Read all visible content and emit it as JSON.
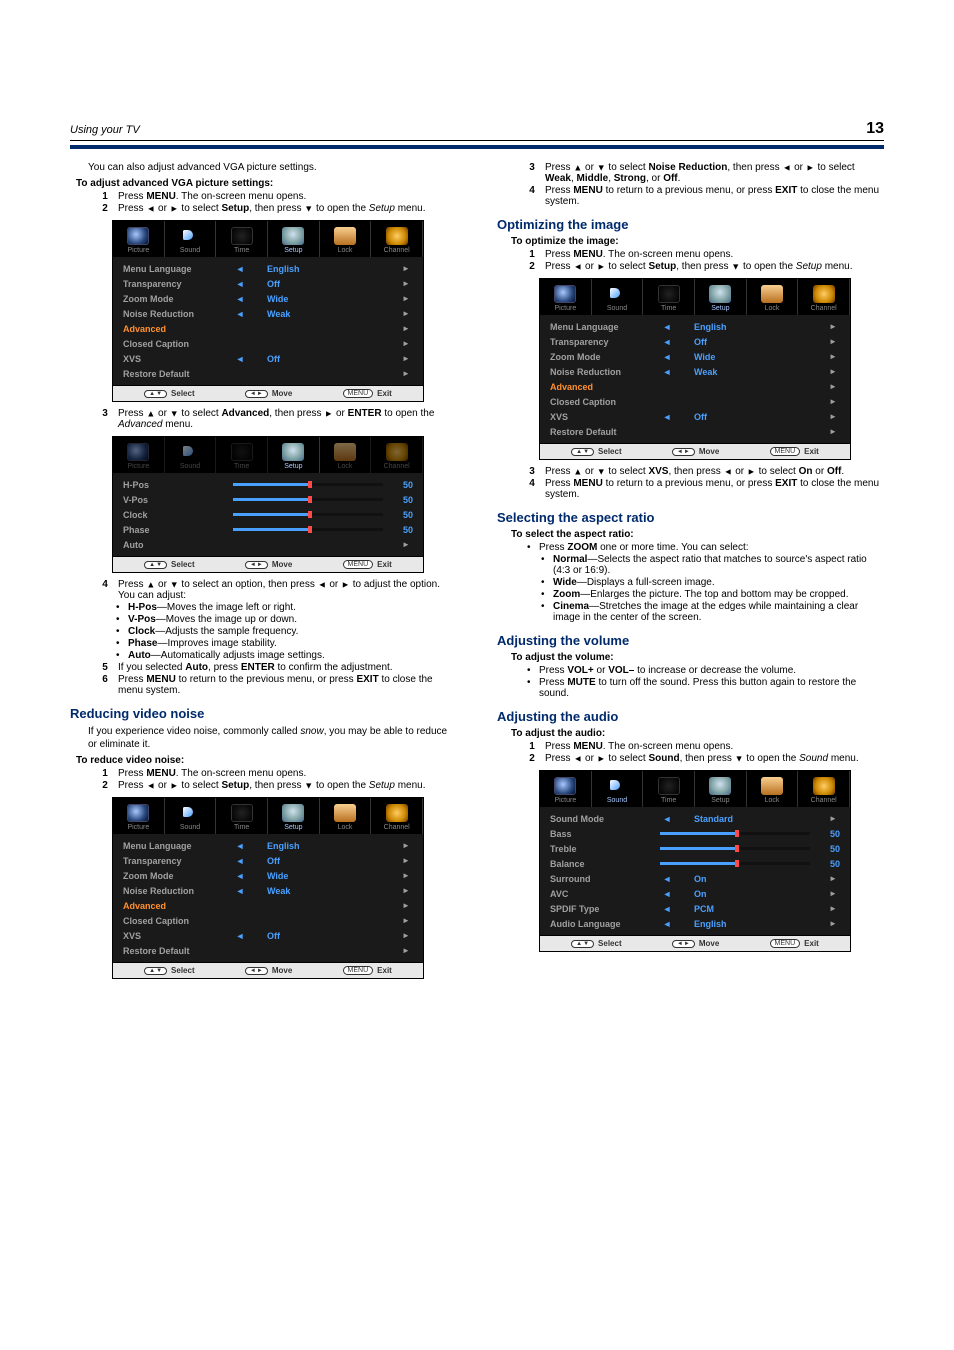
{
  "header": {
    "title": "Using your TV",
    "page_number": "13"
  },
  "accent_color": "#002a6c",
  "osd_common": {
    "tabs": [
      "Picture",
      "Sound",
      "Time",
      "Setup",
      "Lock",
      "Channel"
    ],
    "footer": {
      "select": "Select",
      "move": "Move",
      "exit": "Exit",
      "menu_btn": "MENU"
    }
  },
  "setup_menu": {
    "rows": [
      {
        "label": "Menu Language",
        "val": "English",
        "arrows": true,
        "chev": true
      },
      {
        "label": "Transparency",
        "val": "Off",
        "arrows": true,
        "chev": true
      },
      {
        "label": "Zoom Mode",
        "val": "Wide",
        "arrows": true,
        "chev": true
      },
      {
        "label": "Noise Reduction",
        "val": "Weak",
        "arrows": true,
        "chev": true
      },
      {
        "label": "Advanced",
        "val": "",
        "highlight": true,
        "chev": true
      },
      {
        "label": "Closed Caption",
        "val": "",
        "chev": true
      },
      {
        "label": "XVS",
        "val": "Off",
        "arrows": true,
        "chev": true
      },
      {
        "label": "Restore Default",
        "val": "",
        "chev": true
      }
    ]
  },
  "advanced_menu": {
    "rows": [
      {
        "label": "H-Pos",
        "slider": 50
      },
      {
        "label": "V-Pos",
        "slider": 50
      },
      {
        "label": "Clock",
        "slider": 50
      },
      {
        "label": "Phase",
        "slider": 50
      },
      {
        "label": "Auto",
        "val": "",
        "chev": true
      }
    ]
  },
  "sound_menu": {
    "rows": [
      {
        "label": "Sound Mode",
        "val": "Standard",
        "arrows": true,
        "chev": true
      },
      {
        "label": "Bass",
        "slider": 50
      },
      {
        "label": "Treble",
        "slider": 50
      },
      {
        "label": "Balance",
        "slider": 50
      },
      {
        "label": "Surround",
        "val": "On",
        "arrows": true,
        "chev": true
      },
      {
        "label": "AVC",
        "val": "On",
        "arrows": true,
        "chev": true
      },
      {
        "label": "SPDIF Type",
        "val": "PCM",
        "arrows": true,
        "chev": true
      },
      {
        "label": "Audio Language",
        "val": "English",
        "arrows": true,
        "chev": true
      }
    ]
  },
  "left": {
    "intro": "You can also adjust advanced VGA picture settings.",
    "h_adjust_vga": "To adjust advanced VGA picture settings:",
    "vga_1a": "Press ",
    "vga_1b": "MENU",
    "vga_1c": ". The on-screen menu opens.",
    "vga_2a": "Press ",
    "vga_2b": " or ",
    "vga_2c": " to select ",
    "vga_2d": "Setup",
    "vga_2e": ", then press ",
    "vga_2f": " to open the ",
    "vga_2g": "Setup",
    "vga_2h": " menu.",
    "vga_3a": "Press ",
    "vga_3b": " or ",
    "vga_3c": " to select ",
    "vga_3d": "Advanced",
    "vga_3e": ", then press ",
    "vga_3f": " or ",
    "vga_3g": "ENTER",
    "vga_3h": " to open the ",
    "vga_3i": "Advanced",
    "vga_3j": " menu.",
    "vga_4a": "Press ",
    "vga_4b": " or ",
    "vga_4c": " to select an option, then press ",
    "vga_4d": " or ",
    "vga_4e": " to adjust the option. You can adjust:",
    "opt_hpos_a": "H-Pos",
    "opt_hpos_b": "—Moves the image left or right.",
    "opt_vpos_a": "V-Pos",
    "opt_vpos_b": "—Moves the image up or down.",
    "opt_clock_a": "Clock",
    "opt_clock_b": "—Adjusts the sample frequency.",
    "opt_phase_a": "Phase",
    "opt_phase_b": "—Improves image stability.",
    "opt_auto_a": "Auto",
    "opt_auto_b": "—Automatically adjusts image settings.",
    "vga_5a": "If you selected ",
    "vga_5b": "Auto",
    "vga_5c": ", press ",
    "vga_5d": "ENTER",
    "vga_5e": " to confirm the adjustment.",
    "vga_6a": "Press ",
    "vga_6b": "MENU",
    "vga_6c": " to return to the previous menu, or press ",
    "vga_6d": "EXIT",
    "vga_6e": " to close the menu system.",
    "sec_reduce": "Reducing video noise",
    "reduce_intro_a": "If you experience video noise, commonly called ",
    "reduce_intro_b": "snow",
    "reduce_intro_c": ", you may be able to reduce or eliminate it.",
    "h_reduce": "To reduce video noise:",
    "rn_1a": "Press ",
    "rn_1b": "MENU",
    "rn_1c": ". The on-screen menu opens.",
    "rn_2a": "Press ",
    "rn_2b": " or ",
    "rn_2c": " to select ",
    "rn_2d": "Setup",
    "rn_2e": ", then press ",
    "rn_2f": " to open the ",
    "rn_2g": "Setup",
    "rn_2h": " menu."
  },
  "right": {
    "rn_3a": "Press ",
    "rn_3b": " or ",
    "rn_3c": " to select ",
    "rn_3d": "Noise Reduction",
    "rn_3e": ", then press ",
    "rn_3f": " or ",
    "rn_3g": " to select ",
    "rn_3h": "Weak",
    "rn_3i": ", ",
    "rn_3j": "Middle",
    "rn_3k": ", ",
    "rn_3l": "Strong",
    "rn_3m": ", or ",
    "rn_3n": "Off",
    "rn_3o": ".",
    "rn_4a": "Press ",
    "rn_4b": "MENU",
    "rn_4c": " to return to a previous menu, or press ",
    "rn_4d": "EXIT",
    "rn_4e": " to close the menu system.",
    "sec_optimize": "Optimizing the image",
    "h_optimize": "To optimize the image:",
    "op_1a": "Press ",
    "op_1b": "MENU",
    "op_1c": ". The on-screen menu opens.",
    "op_2a": "Press ",
    "op_2b": " or ",
    "op_2c": " to select ",
    "op_2d": "Setup",
    "op_2e": ", then press ",
    "op_2f": " to open the ",
    "op_2g": "Setup",
    "op_2h": " menu.",
    "op_3a": "Press ",
    "op_3b": " or ",
    "op_3c": " to select ",
    "op_3d": "XVS",
    "op_3e": ", then press ",
    "op_3f": " or ",
    "op_3g": " to select ",
    "op_3h": "On",
    "op_3i": " or ",
    "op_3j": "Off",
    "op_3k": ".",
    "op_4a": "Press ",
    "op_4b": "MENU",
    "op_4c": " to return to a previous menu, or press ",
    "op_4d": "EXIT",
    "op_4e": " to close the menu system.",
    "sec_aspect": "Selecting the aspect ratio",
    "h_aspect": "To select the aspect ratio:",
    "asp_a": "Press ",
    "asp_b": "ZOOM",
    "asp_c": " one or more time. You can select:",
    "asp_normal_a": "Normal",
    "asp_normal_b": "—Selects the aspect ratio that matches to source's aspect ratio (4:3 or 16:9).",
    "asp_wide_a": "Wide",
    "asp_wide_b": "—Displays a full-screen image.",
    "asp_zoom_a": "Zoom",
    "asp_zoom_b": "—Enlarges the picture. The top and bottom may be cropped.",
    "asp_cinema_a": "Cinema",
    "asp_cinema_b": "—Stretches the image at the edges while maintaining a clear image in the center of the screen.",
    "sec_volume": "Adjusting the volume",
    "h_volume": "To adjust the volume:",
    "vol_a1": "Press ",
    "vol_a2": "VOL+",
    "vol_a3": " or ",
    "vol_a4": "VOL–",
    "vol_a5": " to increase or decrease the volume.",
    "vol_b1": "Press ",
    "vol_b2": "MUTE",
    "vol_b3": " to turn off the sound. Press this button again to restore the sound.",
    "sec_audio": "Adjusting the audio",
    "h_audio": "To adjust the audio:",
    "au_1a": "Press ",
    "au_1b": "MENU",
    "au_1c": ". The on-screen menu opens.",
    "au_2a": "Press ",
    "au_2b": " or ",
    "au_2c": " to select ",
    "au_2d": "Sound",
    "au_2e": ", then press ",
    "au_2f": " to open the ",
    "au_2g": "Sound",
    "au_2h": " menu."
  }
}
